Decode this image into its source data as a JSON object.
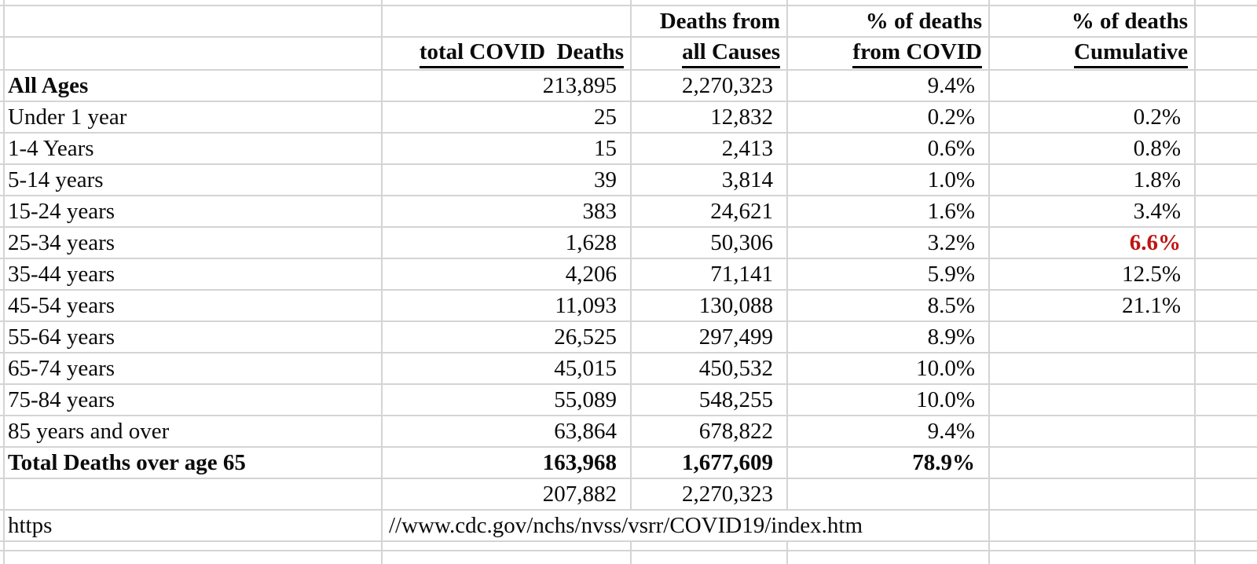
{
  "colors": {
    "highlight_red": "#C01414",
    "text": "#0b0b0b",
    "gridline": "#d4d4d4",
    "background": "#ffffff"
  },
  "chart_data": {
    "type": "table",
    "title": "",
    "header": {
      "row1": [
        "",
        "",
        "Deaths from",
        "% of deaths",
        "% of deaths",
        ""
      ],
      "row2": [
        "",
        "total COVID  Deaths",
        "all Causes",
        "from COVID",
        "Cumulative",
        ""
      ]
    },
    "columns": [
      "age_group",
      "total_covid_deaths",
      "deaths_from_all_causes",
      "pct_of_deaths_from_covid",
      "pct_of_deaths_cumulative"
    ],
    "rows": [
      {
        "type": "data",
        "label": "All Ages",
        "label_bold": true,
        "covid_deaths": "213,895",
        "all_causes": "2,270,323",
        "pct_covid": "9.4%",
        "pct_cumulative": ""
      },
      {
        "type": "data",
        "label": "Under 1 year",
        "covid_deaths": "25",
        "all_causes": "12,832",
        "pct_covid": "0.2%",
        "pct_cumulative": "0.2%"
      },
      {
        "type": "data",
        "label": "1-4 Years",
        "covid_deaths": "15",
        "all_causes": "2,413",
        "pct_covid": "0.6%",
        "pct_cumulative": "0.8%"
      },
      {
        "type": "data",
        "label": "5-14 years",
        "covid_deaths": "39",
        "all_causes": "3,814",
        "pct_covid": "1.0%",
        "pct_cumulative": "1.8%"
      },
      {
        "type": "data",
        "label": "15-24 years",
        "covid_deaths": "383",
        "all_causes": "24,621",
        "pct_covid": "1.6%",
        "pct_cumulative": "3.4%"
      },
      {
        "type": "data",
        "label": "25-34 years",
        "covid_deaths": "1,628",
        "all_causes": "50,306",
        "pct_covid": "3.2%",
        "pct_cumulative": "6.6%",
        "cumulative_color": "#C01414",
        "cumulative_bold": true
      },
      {
        "type": "data",
        "label": "35-44 years",
        "covid_deaths": "4,206",
        "all_causes": "71,141",
        "pct_covid": "5.9%",
        "pct_cumulative": "12.5%"
      },
      {
        "type": "data",
        "label": "45-54 years",
        "covid_deaths": "11,093",
        "all_causes": "130,088",
        "pct_covid": "8.5%",
        "pct_cumulative": "21.1%"
      },
      {
        "type": "data",
        "label": "55-64 years",
        "covid_deaths": "26,525",
        "all_causes": "297,499",
        "pct_covid": "8.9%",
        "pct_cumulative": ""
      },
      {
        "type": "data",
        "label": "65-74 years",
        "covid_deaths": "45,015",
        "all_causes": "450,532",
        "pct_covid": "10.0%",
        "pct_cumulative": ""
      },
      {
        "type": "data",
        "label": "75-84 years",
        "covid_deaths": "55,089",
        "all_causes": "548,255",
        "pct_covid": "10.0%",
        "pct_cumulative": ""
      },
      {
        "type": "data",
        "label": "85 years and over",
        "covid_deaths": "63,864",
        "all_causes": "678,822",
        "pct_covid": "9.4%",
        "pct_cumulative": ""
      },
      {
        "type": "data",
        "label": "Total Deaths over age 65",
        "bold": true,
        "covid_deaths": "163,968",
        "all_causes": "1,677,609",
        "pct_covid": "78.9%",
        "pct_cumulative": ""
      },
      {
        "type": "data",
        "label": "",
        "covid_deaths": "207,882",
        "all_causes": "2,270,323",
        "pct_covid": "",
        "pct_cumulative": ""
      },
      {
        "type": "url",
        "label": "https",
        "url": "//www.cdc.gov/nchs/nvss/vsrr/COVID19/index.htm"
      }
    ]
  }
}
